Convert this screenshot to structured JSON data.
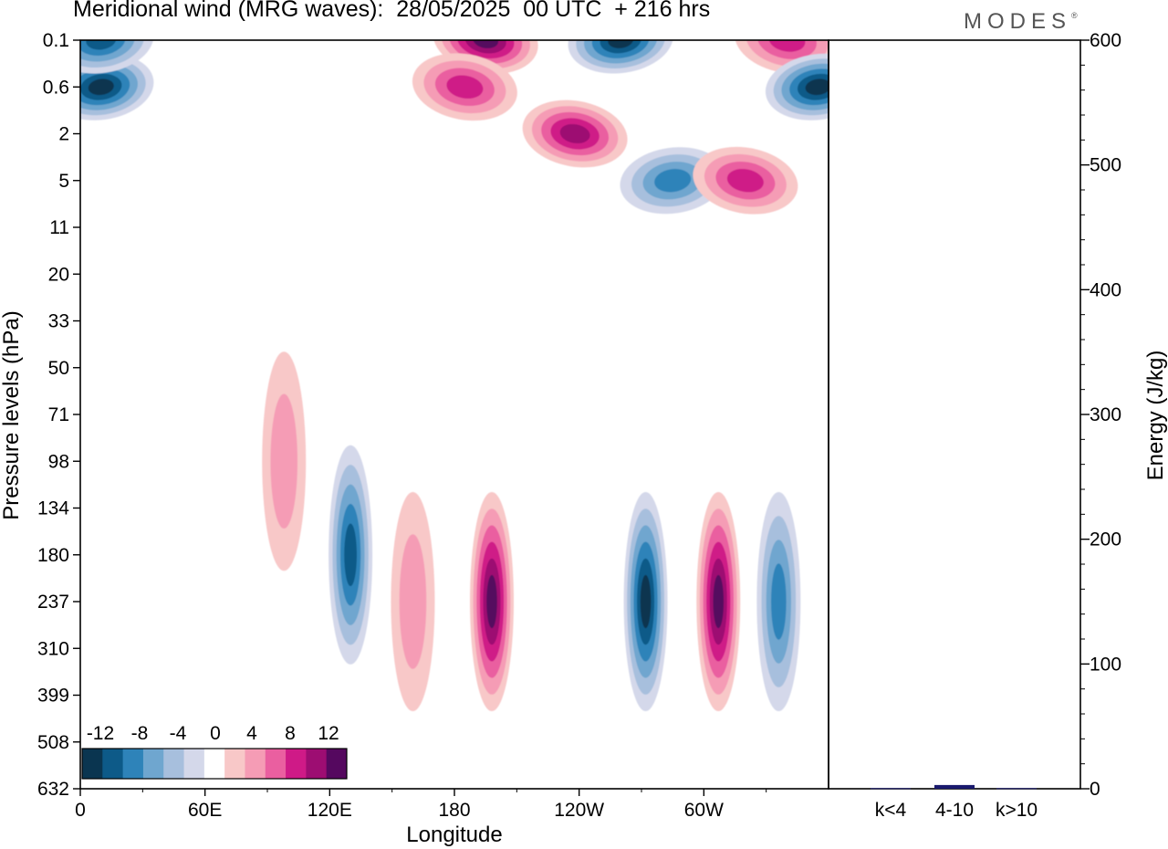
{
  "title": "Meridional wind (MRG waves):  28/05/2025  00 UTC  + 216 hrs",
  "brand": "MODES",
  "brand_mark": "®",
  "colors": {
    "neg": [
      "#0a3550",
      "#0d5a88",
      "#2e83b9",
      "#6fa6cf",
      "#a7bfdd",
      "#d4d8ea"
    ],
    "zero": "#ffffff",
    "pos": [
      "#f8c8c8",
      "#f59cb5",
      "#ea5fa0",
      "#cf1a87",
      "#9d0d72",
      "#55085f"
    ],
    "energy_bar": "#1a1a6e"
  },
  "chart_data": [
    {
      "type": "heatmap",
      "title": "Meridional wind (MRG waves):  28/05/2025  00 UTC  + 216 hrs",
      "xlabel": "Longitude",
      "ylabel": "Pressure levels (hPa)",
      "x_ticks": [
        "0",
        "60E",
        "120E",
        "180",
        "120W",
        "60W"
      ],
      "y_ticks": [
        "0.1",
        "0.6",
        "2",
        "5",
        "11",
        "20",
        "33",
        "50",
        "71",
        "98",
        "134",
        "180",
        "237",
        "310",
        "399",
        "508",
        "632"
      ],
      "colorbar_labels": [
        "-12",
        "-8",
        "-4",
        "0",
        "4",
        "8",
        "12"
      ],
      "colorbar_levels": [
        -14,
        -12,
        -10,
        -8,
        -6,
        -4,
        -2,
        2,
        4,
        6,
        8,
        10,
        12,
        14
      ],
      "features": [
        {
          "lon": 10,
          "level": "0.6",
          "value": -13
        },
        {
          "lon": 10,
          "level": "0.1",
          "value": -10
        },
        {
          "lon": 195,
          "level": "0.1",
          "value": 14
        },
        {
          "lon": 185,
          "level": "0.6",
          "value": 9
        },
        {
          "lon": 260,
          "level": "0.1",
          "value": -13
        },
        {
          "lon": 238,
          "level": "2",
          "value": 11
        },
        {
          "lon": 285,
          "level": "5",
          "value": -9
        },
        {
          "lon": 320,
          "level": "5",
          "value": 9
        },
        {
          "lon": 340,
          "level": "0.1",
          "value": 8
        },
        {
          "lon": 355,
          "level": "0.6",
          "value": -12
        },
        {
          "lon": 130,
          "level": "180",
          "value": -10
        },
        {
          "lon": 198,
          "level": "237",
          "value": 13
        },
        {
          "lon": 272,
          "level": "237",
          "value": -13
        },
        {
          "lon": 307,
          "level": "237",
          "value": 12
        },
        {
          "lon": 336,
          "level": "237",
          "value": -8
        },
        {
          "lon": 98,
          "level": "98",
          "value": 5
        },
        {
          "lon": 160,
          "level": "237",
          "value": 4
        }
      ]
    },
    {
      "type": "bar",
      "categories": [
        "k<4",
        "4-10",
        "k>10"
      ],
      "values": [
        0.5,
        3,
        0.5
      ],
      "ylabel": "Energy (J/kg)",
      "ylim": [
        0,
        600
      ],
      "y_ticks": [
        "0",
        "100",
        "200",
        "300",
        "400",
        "500",
        "600"
      ]
    }
  ]
}
